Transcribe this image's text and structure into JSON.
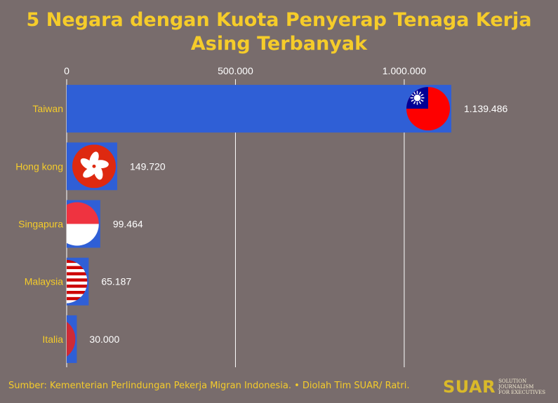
{
  "title": "5 Negara dengan Kuota Penyerap Tenaga Kerja Asing Terbanyak",
  "footer": {
    "source": "Sumber: Kementerian Perlindungan Pekerja Migran Indonesia. • Diolah Tim SUAR/ Ratri.",
    "logo_word": "SUAR",
    "logo_tagline_1": "Solution Journalism",
    "logo_tagline_2": "for Executives"
  },
  "colors": {
    "background": "#786c6c",
    "accent": "#f5cc2a",
    "bar": "#2f5fd6",
    "gridline": "#ffffff",
    "value_text": "#ffffff"
  },
  "chart_data": {
    "type": "bar",
    "orientation": "horizontal",
    "categories": [
      "Taiwan",
      "Hong kong",
      "Singapura",
      "Malaysia",
      "Italia"
    ],
    "values": [
      1139486,
      149720,
      99464,
      65187,
      30000
    ],
    "value_labels": [
      "1.139.486",
      "149.720",
      "99.464",
      "65.187",
      "30.000"
    ],
    "flag_icons": [
      "taiwan-flag-icon",
      "hong-kong-flag-icon",
      "singapore-flag-icon",
      "malaysia-flag-icon",
      "italy-flag-icon"
    ],
    "xlim": [
      0,
      1139486
    ],
    "xticks": [
      0,
      500000,
      1000000
    ],
    "xtick_labels": [
      "0",
      "500.000",
      "1.000.000"
    ],
    "tick_position": "top",
    "grid": true
  }
}
